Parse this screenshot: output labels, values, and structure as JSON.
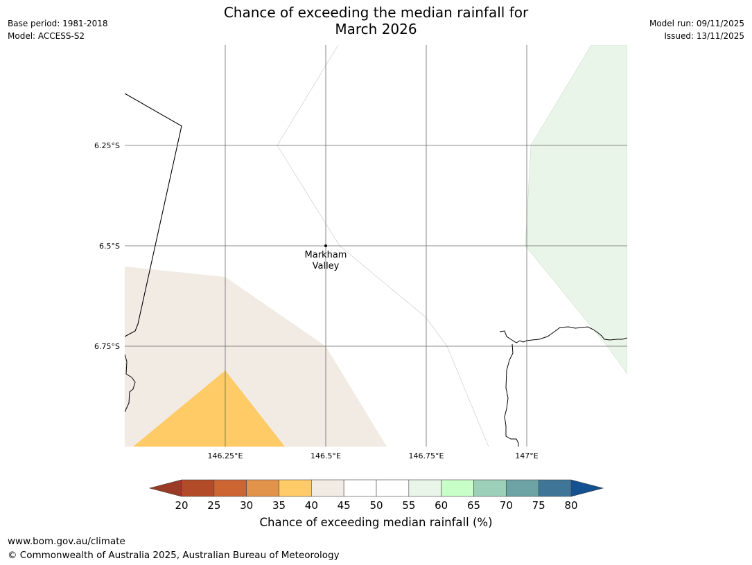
{
  "header": {
    "base_period": "Base period: 1981-2018",
    "model": "Model: ACCESS-S2",
    "title_line1": "Chance of exceeding the median rainfall for",
    "title_line2": "March 2026",
    "model_run": "Model run: 09/11/2025",
    "issued": "Issued: 13/11/2025"
  },
  "map": {
    "lat_labels": [
      "6.25°S",
      "6.5°S",
      "6.75°S"
    ],
    "lon_labels": [
      "146.25°E",
      "146.5°E",
      "146.75°E",
      "147°E"
    ],
    "place": {
      "name_line1": "Markham",
      "name_line2": "Valley"
    },
    "region_colors": {
      "band_40_45": "#f1ebe4",
      "band_35_40": "#fecb66",
      "band_55_60": "#e9f5e9"
    }
  },
  "colorbar": {
    "ticks": [
      "20",
      "25",
      "30",
      "35",
      "40",
      "45",
      "50",
      "55",
      "60",
      "65",
      "70",
      "75",
      "80"
    ],
    "under_color": "#9a3b25",
    "over_color": "#145190",
    "colors": [
      "#b24b28",
      "#cd6533",
      "#e2934a",
      "#fecb66",
      "#f1ebe4",
      "#ffffff",
      "#ffffff",
      "#e9f5e9",
      "#c8fec8",
      "#9dd0b9",
      "#6da3a4",
      "#3f7698"
    ],
    "label": "Chance of exceeding median rainfall (%)"
  },
  "footer": {
    "url": "www.bom.gov.au/climate",
    "copyright": "© Commonwealth of Australia 2025, Australian Bureau of Meteorology"
  }
}
